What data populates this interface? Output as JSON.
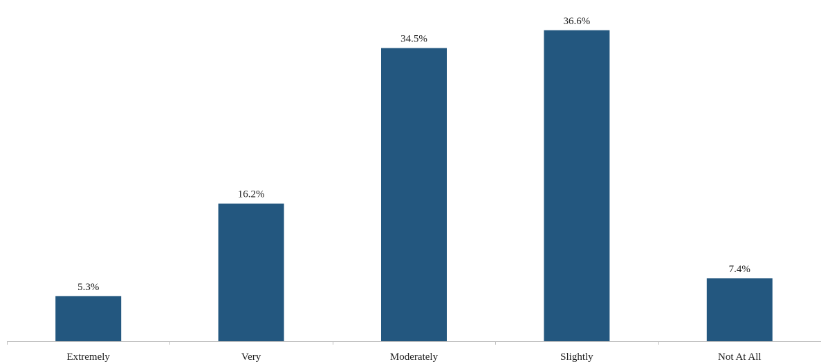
{
  "chart_data": {
    "type": "bar",
    "categories": [
      "Extremely",
      "Very",
      "Moderately",
      "Slightly",
      "Not At All"
    ],
    "values": [
      5.3,
      16.2,
      34.5,
      36.6,
      7.4
    ],
    "data_labels": [
      "5.3%",
      "16.2%",
      "34.5%",
      "36.6%",
      "7.4%"
    ],
    "title": "",
    "xlabel": "",
    "ylabel": "",
    "ylim": [
      0,
      40
    ],
    "grid": false,
    "legend": "none",
    "bar_color": "#23577f"
  }
}
